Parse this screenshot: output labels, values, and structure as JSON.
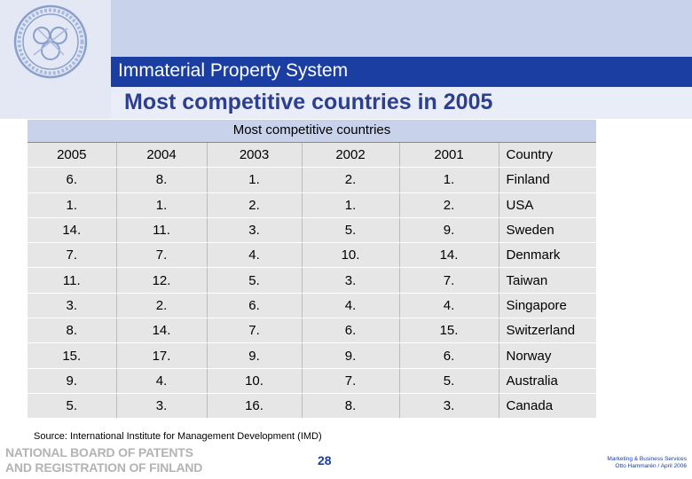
{
  "header": {
    "title": "Immaterial Property System",
    "slide_title": "Most competitive countries in 2005"
  },
  "table": {
    "caption": "Most competitive countries",
    "columns": [
      "2005",
      "2004",
      "2003",
      "2002",
      "2001",
      "Country"
    ],
    "rows": [
      [
        "6.",
        "8.",
        "1.",
        "2.",
        "1.",
        "Finland"
      ],
      [
        "1.",
        "1.",
        "2.",
        "1.",
        "2.",
        "USA"
      ],
      [
        "14.",
        "11.",
        "3.",
        "5.",
        "9.",
        "Sweden"
      ],
      [
        "7.",
        "7.",
        "4.",
        "10.",
        "14.",
        "Denmark"
      ],
      [
        "11.",
        "12.",
        "5.",
        "3.",
        "7.",
        "Taiwan"
      ],
      [
        "3.",
        "2.",
        "6.",
        "4.",
        "4.",
        "Singapore"
      ],
      [
        "8.",
        "14.",
        "7.",
        "6.",
        "15.",
        "Switzerland"
      ],
      [
        "15.",
        "17.",
        "9.",
        "9.",
        "6.",
        "Norway"
      ],
      [
        "9.",
        "4.",
        "10.",
        "7.",
        "5.",
        "Australia"
      ],
      [
        "5.",
        "3.",
        "16.",
        "8.",
        "3.",
        "Canada"
      ]
    ]
  },
  "source": "Source: International Institute for Management Development (IMD)",
  "footer": {
    "org_line1": "NATIONAL BOARD OF PATENTS",
    "org_line2": "AND REGISTRATION OF FINLAND",
    "page_number": "28",
    "right_line1": "Marketing & Business Services",
    "right_line2": "Otto Hammarén / April 2006"
  },
  "colors": {
    "header_blue": "#1b3ea3",
    "band": "#c8d2ea"
  }
}
